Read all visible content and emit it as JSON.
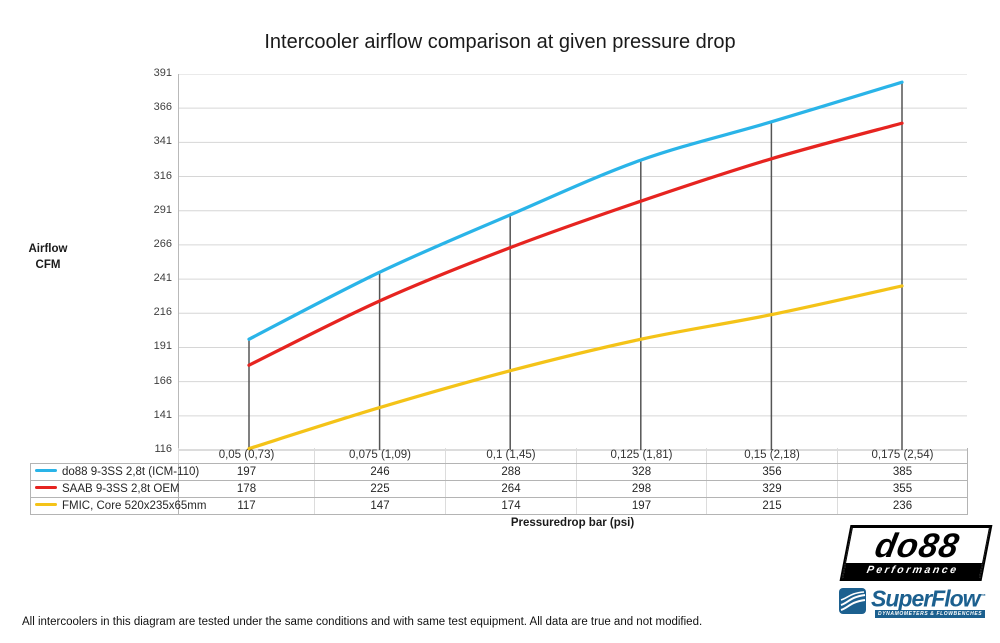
{
  "title": "Intercooler airflow comparison at given pressure drop",
  "y_axis": {
    "title_line1": "Airflow",
    "title_line2": "CFM"
  },
  "x_axis_title": "Pressuredrop bar (psi)",
  "footer": "All intercoolers in this diagram are tested under the same conditions and with same test equipment. All data are true and not modified.",
  "logos": {
    "do88": {
      "name": "do88",
      "tagline": "Performance"
    },
    "superflow": {
      "name": "SuperFlow",
      "trademark": "™",
      "tagline": "DYNAMOMETERS & FLOWBENCHES"
    }
  },
  "chart_data": {
    "type": "line",
    "title": "Intercooler airflow comparison at given pressure drop",
    "categories": [
      "0,05 (0,73)",
      "0,075 (1,09)",
      "0,1 (1,45)",
      "0,125 (1,81)",
      "0,15 (2,18)",
      "0,175 (2,54)"
    ],
    "series": [
      {
        "name": "do88 9-3SS 2,8t (ICM-110)",
        "color": "#2ab4e8",
        "values": [
          197,
          246,
          288,
          328,
          356,
          385
        ]
      },
      {
        "name": "SAAB 9-3SS 2,8t OEM",
        "color": "#e62420",
        "values": [
          178,
          225,
          264,
          298,
          329,
          355
        ]
      },
      {
        "name": "FMIC, Core 520x235x65mm",
        "color": "#f4c318",
        "values": [
          117,
          147,
          174,
          197,
          215,
          236
        ]
      }
    ],
    "ylabel": "Airflow CFM",
    "xlabel": "Pressuredrop bar (psi)",
    "ylim": [
      116,
      391
    ],
    "ytick_step": 25,
    "grid": true,
    "legend_position": "table-left",
    "colors": {
      "gridline": "#d6d6d6",
      "axis": "#b9b9b9",
      "dropline": "#555555",
      "table_border": "#b4b4b4"
    }
  }
}
